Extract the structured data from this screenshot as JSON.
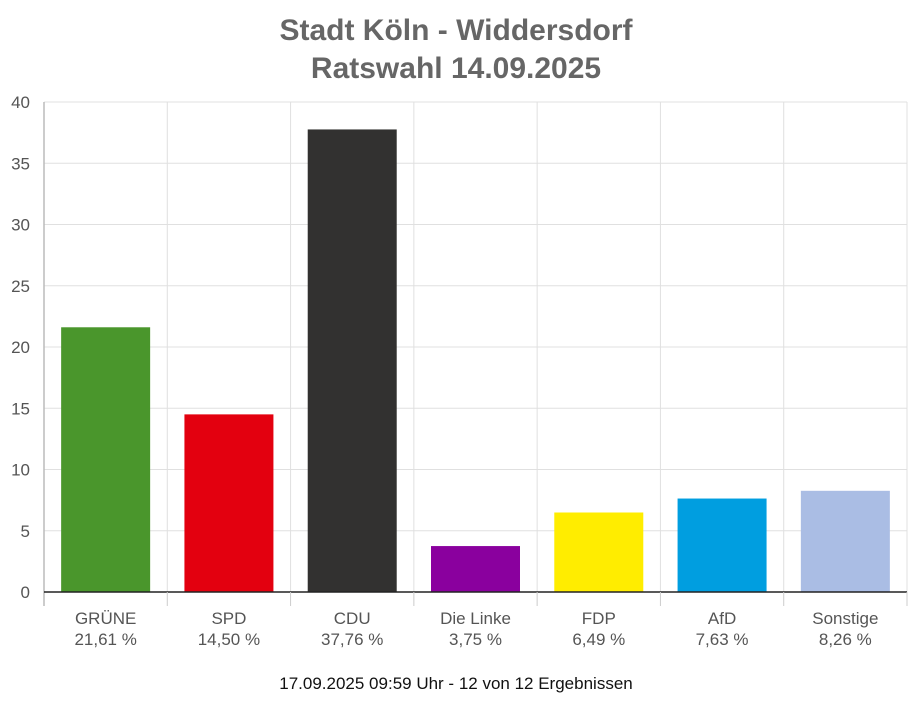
{
  "chart_data": {
    "type": "bar",
    "title": "Stadt Köln - Widdersdorf",
    "subtitle": "Ratswahl 14.09.2025",
    "categories": [
      "GRÜNE",
      "SPD",
      "CDU",
      "Die Linke",
      "FDP",
      "AfD",
      "Sonstige"
    ],
    "values": [
      21.61,
      14.5,
      37.76,
      3.75,
      6.49,
      7.63,
      8.26
    ],
    "value_labels": [
      "21,61 %",
      "14,50 %",
      "37,76 %",
      "3,75 %",
      "6,49 %",
      "7,63 %",
      "8,26 %"
    ],
    "colors": [
      "#4a962c",
      "#e3000f",
      "#323130",
      "#8a009e",
      "#ffed00",
      "#009ee0",
      "#aabde4"
    ],
    "yticks": [
      0,
      5,
      10,
      15,
      20,
      25,
      30,
      35,
      40
    ],
    "ylim": [
      0,
      40
    ],
    "grid": true,
    "footer": "17.09.2025 09:59 Uhr - 12 von 12 Ergebnissen"
  }
}
